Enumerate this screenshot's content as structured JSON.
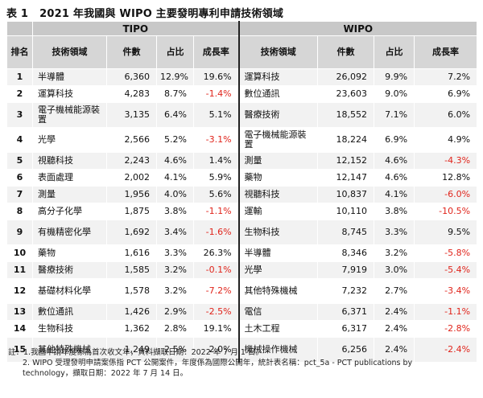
{
  "title": {
    "label": "表 1",
    "text": "2021 年我國與 WIPO 主要發明專利申請技術領域"
  },
  "headers": {
    "tipo": "TIPO",
    "wipo": "WIPO",
    "rank": "排名",
    "field": "技術領域",
    "count": "件數",
    "share": "占比",
    "growth": "成長率"
  },
  "rows": [
    {
      "rank": "1",
      "tipo": {
        "field": "半導體",
        "count": "6,360",
        "share": "12.9%",
        "growth": "19.6%"
      },
      "wipo": {
        "field": "運算科技",
        "count": "26,092",
        "share": "9.9%",
        "growth": "7.2%"
      }
    },
    {
      "rank": "2",
      "tipo": {
        "field": "運算科技",
        "count": "4,283",
        "share": "8.7%",
        "growth": "-1.4%"
      },
      "wipo": {
        "field": "數位通訊",
        "count": "23,603",
        "share": "9.0%",
        "growth": "6.9%"
      }
    },
    {
      "rank": "3",
      "tipo": {
        "field": "電子機械能源裝置",
        "count": "3,135",
        "share": "6.4%",
        "growth": "5.1%"
      },
      "wipo": {
        "field": "醫療技術",
        "count": "18,552",
        "share": "7.1%",
        "growth": "6.0%"
      }
    },
    {
      "rank": "4",
      "tipo": {
        "field": "光學",
        "count": "2,566",
        "share": "5.2%",
        "growth": "-3.1%"
      },
      "wipo": {
        "field": "電子機械能源裝置",
        "count": "18,224",
        "share": "6.9%",
        "growth": "4.9%"
      }
    },
    {
      "rank": "5",
      "tipo": {
        "field": "視聽科技",
        "count": "2,243",
        "share": "4.6%",
        "growth": "1.4%"
      },
      "wipo": {
        "field": "測量",
        "count": "12,152",
        "share": "4.6%",
        "growth": "-4.3%"
      }
    },
    {
      "rank": "6",
      "tipo": {
        "field": "表面處理",
        "count": "2,002",
        "share": "4.1%",
        "growth": "5.9%"
      },
      "wipo": {
        "field": "藥物",
        "count": "12,147",
        "share": "4.6%",
        "growth": "12.8%"
      }
    },
    {
      "rank": "7",
      "tipo": {
        "field": "測量",
        "count": "1,956",
        "share": "4.0%",
        "growth": "5.6%"
      },
      "wipo": {
        "field": "視聽科技",
        "count": "10,837",
        "share": "4.1%",
        "growth": "-6.0%"
      }
    },
    {
      "rank": "8",
      "tipo": {
        "field": "高分子化學",
        "count": "1,875",
        "share": "3.8%",
        "growth": "-1.1%"
      },
      "wipo": {
        "field": "運輸",
        "count": "10,110",
        "share": "3.8%",
        "growth": "-10.5%"
      }
    },
    {
      "rank": "9",
      "tipo": {
        "field": "有機精密化學",
        "count": "1,692",
        "share": "3.4%",
        "growth": "-1.6%"
      },
      "wipo": {
        "field": "生物科技",
        "count": "8,745",
        "share": "3.3%",
        "growth": "9.5%"
      }
    },
    {
      "rank": "10",
      "tipo": {
        "field": "藥物",
        "count": "1,616",
        "share": "3.3%",
        "growth": "26.3%"
      },
      "wipo": {
        "field": "半導體",
        "count": "8,346",
        "share": "3.2%",
        "growth": "-5.8%"
      }
    },
    {
      "rank": "11",
      "tipo": {
        "field": "醫療技術",
        "count": "1,585",
        "share": "3.2%",
        "growth": "-0.1%"
      },
      "wipo": {
        "field": "光學",
        "count": "7,919",
        "share": "3.0%",
        "growth": "-5.4%"
      }
    },
    {
      "rank": "12",
      "tipo": {
        "field": "基礎材料化學",
        "count": "1,578",
        "share": "3.2%",
        "growth": "-7.2%"
      },
      "wipo": {
        "field": "其他特殊機械",
        "count": "7,232",
        "share": "2.7%",
        "growth": "-3.4%"
      }
    },
    {
      "rank": "13",
      "tipo": {
        "field": "數位通訊",
        "count": "1,426",
        "share": "2.9%",
        "growth": "-2.5%"
      },
      "wipo": {
        "field": "電信",
        "count": "6,371",
        "share": "2.4%",
        "growth": "-1.1%"
      }
    },
    {
      "rank": "14",
      "tipo": {
        "field": "生物科技",
        "count": "1,362",
        "share": "2.8%",
        "growth": "19.1%"
      },
      "wipo": {
        "field": "土木工程",
        "count": "6,317",
        "share": "2.4%",
        "growth": "-2.8%"
      }
    },
    {
      "rank": "15",
      "tipo": {
        "field": "其他特殊機械",
        "count": "1,249",
        "share": "2.5%",
        "growth": "2.0%"
      },
      "wipo": {
        "field": "機械操作機械",
        "count": "6,256",
        "share": "2.4%",
        "growth": "-2.4%"
      }
    }
  ],
  "notes": {
    "n1": "註：1.我國申請年度係為首次收文年，資料擷取日期：2022 年 7 月 1 日。",
    "n2a": "2. WIPO 受理發明申請案係指 PCT 公開案件，年度係為國際公開年，統計表名稱：pct_5a - PCT publications by",
    "n2b": "technology，擷取日期：2022 年 7 月 14 日。"
  },
  "colors": {
    "negative": "#e0241b",
    "header_bg": "#d6d6d6",
    "stripe": "#f2f2f2"
  }
}
